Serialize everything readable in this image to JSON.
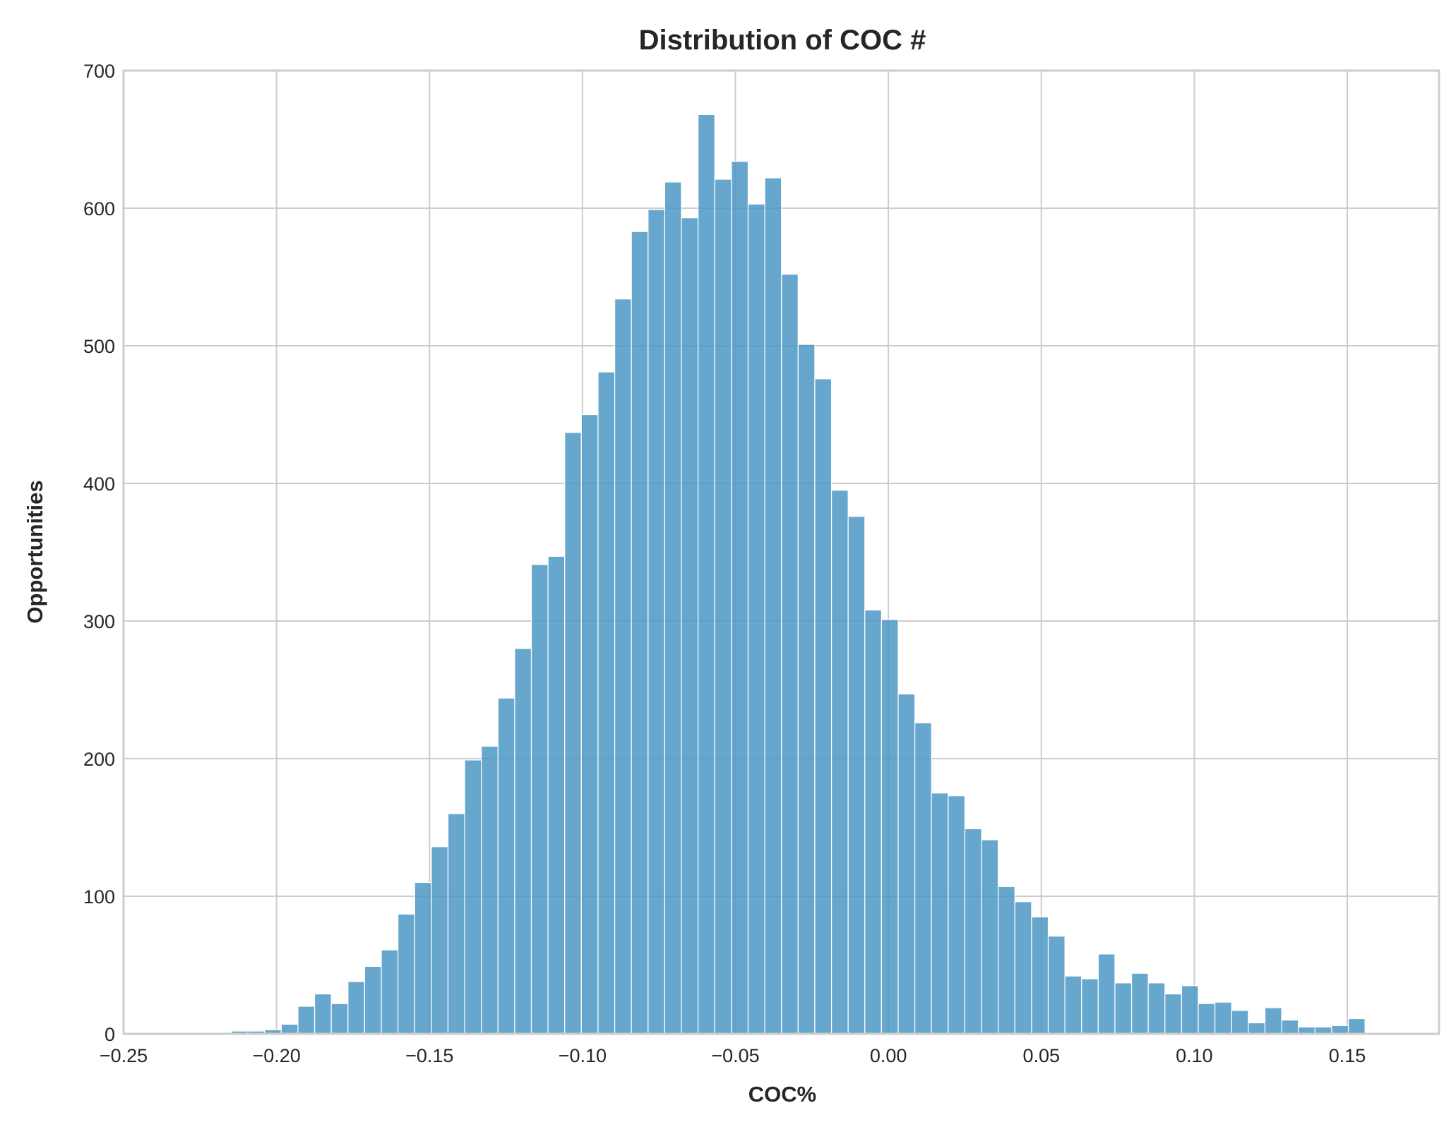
{
  "chart_data": {
    "type": "bar",
    "title": "Distribution of COC #",
    "xlabel": "COC%",
    "ylabel": "Opportunities",
    "xlim": [
      -0.25,
      0.18
    ],
    "ylim": [
      0,
      700
    ],
    "xticks": [
      -0.25,
      -0.2,
      -0.15,
      -0.1,
      -0.05,
      0.0,
      0.05,
      0.1,
      0.15
    ],
    "xtick_labels": [
      "−0.25",
      "−0.20",
      "−0.15",
      "−0.10",
      "−0.05",
      "0.00",
      "0.05",
      "0.10",
      "0.15"
    ],
    "yticks": [
      0,
      100,
      200,
      300,
      400,
      500,
      600,
      700
    ],
    "ytick_labels": [
      "0",
      "100",
      "200",
      "300",
      "400",
      "500",
      "600",
      "700"
    ],
    "grid": true,
    "bar_color": "#4b96c4",
    "bin_start": -0.2366,
    "bin_width": 0.00545,
    "values": [
      0,
      1,
      1,
      0,
      2,
      2,
      3,
      7,
      20,
      29,
      22,
      38,
      49,
      61,
      87,
      110,
      136,
      160,
      199,
      209,
      244,
      280,
      341,
      347,
      437,
      450,
      481,
      534,
      583,
      599,
      619,
      593,
      668,
      621,
      634,
      603,
      622,
      552,
      501,
      476,
      395,
      376,
      308,
      301,
      247,
      226,
      175,
      173,
      149,
      141,
      107,
      96,
      85,
      71,
      42,
      40,
      58,
      37,
      44,
      37,
      29,
      35,
      22,
      23,
      17,
      8,
      19,
      10,
      5,
      5,
      6,
      11
    ]
  }
}
